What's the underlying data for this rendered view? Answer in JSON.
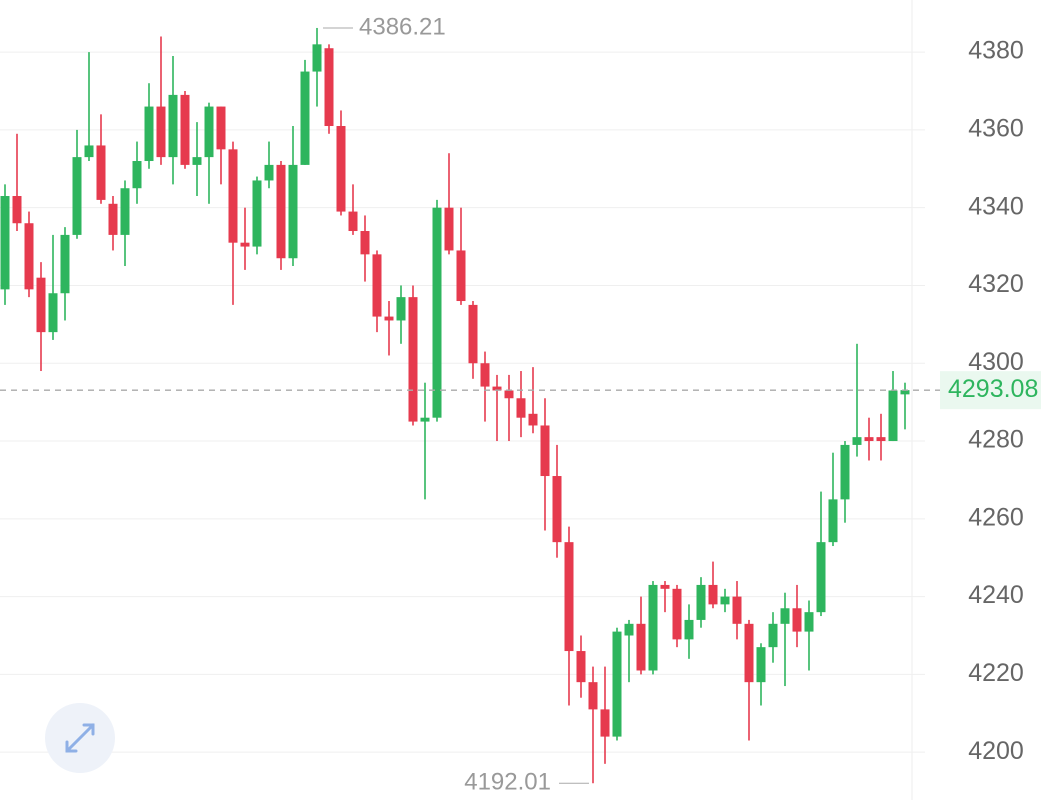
{
  "chart_data": {
    "type": "candlestick",
    "open": [
      4319,
      4343,
      4336,
      4322,
      4308,
      4318,
      4333,
      4353,
      4356,
      4341,
      4333,
      4345,
      4352,
      4366,
      4353,
      4369,
      4351,
      4353,
      4366,
      4355,
      4331,
      4330,
      4347,
      4351,
      4327,
      4351,
      4375,
      4381,
      4361,
      4339,
      4334,
      4328,
      4312,
      4311,
      4317,
      4285,
      4286,
      4340,
      4329,
      4315,
      4300,
      4294,
      4293,
      4291,
      4287,
      4284,
      4271,
      4254,
      4226,
      4218,
      4211,
      4204,
      4230,
      4233,
      4221,
      4243,
      4242,
      4229,
      4234,
      4243,
      4238,
      4240,
      4233,
      4218,
      4227,
      4233,
      4237,
      4231,
      4236,
      4254,
      4265,
      4279,
      4281,
      4281,
      4280,
      4292
    ],
    "high": [
      4346,
      4359,
      4339,
      4326,
      4333,
      4335,
      4360,
      4380,
      4364,
      4343,
      4347,
      4357,
      4372,
      4384,
      4379,
      4370,
      4362,
      4367,
      4366,
      4357,
      4340,
      4348,
      4357,
      4352,
      4361,
      4378,
      4386.21,
      4382,
      4365,
      4346,
      4338,
      4329,
      4316,
      4320,
      4320,
      4295,
      4342,
      4354,
      4340,
      4316,
      4303,
      4297,
      4297,
      4298,
      4299,
      4291,
      4279,
      4258,
      4230,
      4222,
      4222,
      4232,
      4234,
      4240,
      4244,
      4244,
      4243,
      4238,
      4245,
      4249,
      4242,
      4244,
      4234,
      4228,
      4236,
      4241,
      4243,
      4239,
      4267,
      4277,
      4280,
      4305,
      4286,
      4287,
      4298,
      4295
    ],
    "low": [
      4315,
      4334,
      4317,
      4298,
      4306,
      4311,
      4332,
      4352,
      4341,
      4329,
      4325,
      4341,
      4350,
      4351,
      4346,
      4350,
      4343,
      4341,
      4346,
      4315,
      4324,
      4328,
      4345,
      4324,
      4325,
      4351,
      4366,
      4359,
      4338,
      4333,
      4321,
      4308,
      4302,
      4305,
      4284,
      4265,
      4285,
      4328,
      4315,
      4296,
      4285,
      4280,
      4280,
      4281,
      4282,
      4257,
      4250,
      4212,
      4214,
      4192.01,
      4197,
      4203,
      4218,
      4220,
      4220,
      4236,
      4227,
      4224,
      4232,
      4237,
      4236,
      4229,
      4203,
      4212,
      4223,
      4217,
      4227,
      4221,
      4235,
      4253,
      4259,
      4276,
      4275,
      4275,
      4280,
      4283
    ],
    "close": [
      4343,
      4336,
      4319,
      4308,
      4318,
      4333,
      4353,
      4356,
      4342,
      4333,
      4345,
      4352,
      4366,
      4353,
      4369,
      4351,
      4353,
      4366,
      4355,
      4331,
      4330,
      4347,
      4351,
      4327,
      4351,
      4375,
      4382,
      4361,
      4339,
      4334,
      4328,
      4312,
      4311,
      4317,
      4285,
      4286,
      4340,
      4329,
      4316,
      4300,
      4294,
      4293,
      4291,
      4286,
      4284,
      4271,
      4254,
      4226,
      4218,
      4211,
      4204,
      4231,
      4233,
      4221,
      4243,
      4242,
      4229,
      4234,
      4243,
      4238,
      4240,
      4233,
      4218,
      4227,
      4233,
      4237,
      4231,
      4236,
      4254,
      4265,
      4279,
      4281,
      4280,
      4280,
      4293,
      4293.08
    ],
    "up_color": "#2eb55e",
    "down_color": "#e63a4e",
    "ylim": [
      4187.7,
      4393.4
    ],
    "yticks": [
      4200,
      4220,
      4240,
      4260,
      4280,
      4300,
      4320,
      4340,
      4360,
      4380
    ],
    "grid": true
  }
}
